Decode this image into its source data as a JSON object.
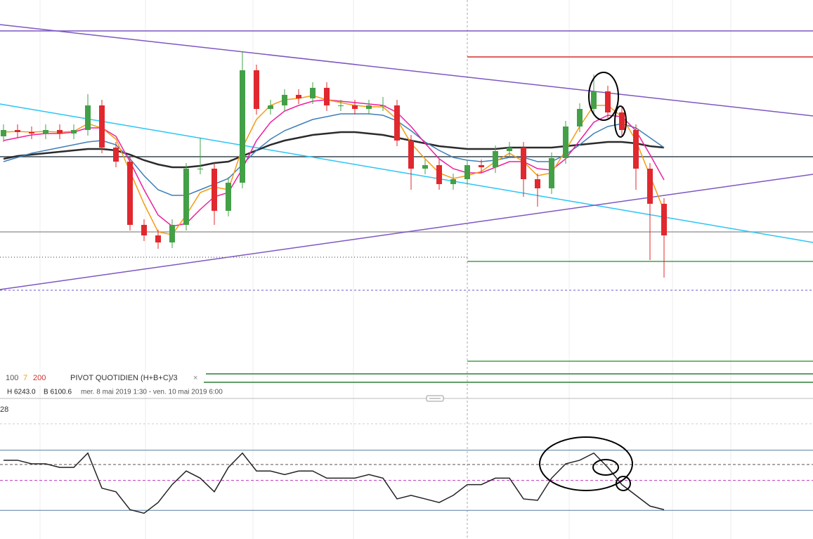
{
  "chart_data": {
    "type": "candlestick",
    "ylim": [
      5990,
      6265
    ],
    "candles": [
      [
        6168,
        6176.5,
        6164,
        6172.5
      ],
      [
        6172.5,
        6176.5,
        6167,
        6171
      ],
      [
        6171,
        6175,
        6166,
        6170
      ],
      [
        6170,
        6176.5,
        6166,
        6172.5
      ],
      [
        6172.5,
        6176.5,
        6166,
        6170
      ],
      [
        6170,
        6176.5,
        6166,
        6172.5
      ],
      [
        6172.5,
        6198,
        6168.5,
        6190
      ],
      [
        6190,
        6194,
        6156,
        6160
      ],
      [
        6160,
        6164,
        6146,
        6150
      ],
      [
        6150,
        6154,
        6101,
        6105
      ],
      [
        6105,
        6109,
        6093.5,
        6097.5
      ],
      [
        6097.5,
        6101.5,
        6088,
        6092.5
      ],
      [
        6092.5,
        6109,
        6088.5,
        6105
      ],
      [
        6105,
        6149,
        6101,
        6145
      ],
      [
        6145,
        6167,
        6141,
        6145
      ],
      [
        6145,
        6149,
        6105,
        6115
      ],
      [
        6115,
        6139,
        6111,
        6135
      ],
      [
        6135,
        6228,
        6131,
        6215
      ],
      [
        6215,
        6219,
        6183.5,
        6187.5
      ],
      [
        6187.5,
        6194,
        6183.5,
        6190
      ],
      [
        6190,
        6201.5,
        6186,
        6197.5
      ],
      [
        6197.5,
        6201.5,
        6191,
        6195
      ],
      [
        6195,
        6206.5,
        6191,
        6202.5
      ],
      [
        6202.5,
        6206.5,
        6186,
        6190
      ],
      [
        6190,
        6194,
        6186,
        6190
      ],
      [
        6190,
        6194,
        6183.5,
        6187.5
      ],
      [
        6187.5,
        6194,
        6183.5,
        6190
      ],
      [
        6190,
        6196,
        6186,
        6190
      ],
      [
        6190,
        6194,
        6161,
        6165
      ],
      [
        6165,
        6169,
        6130,
        6145
      ],
      [
        6145,
        6151.5,
        6141,
        6147.5
      ],
      [
        6147.5,
        6151.5,
        6130,
        6134
      ],
      [
        6134,
        6141.5,
        6130,
        6137.5
      ],
      [
        6137.5,
        6151.5,
        6133.5,
        6147.5
      ],
      [
        6147.5,
        6151.5,
        6142,
        6146
      ],
      [
        6146,
        6161.5,
        6142,
        6157.5
      ],
      [
        6157.5,
        6164,
        6153.5,
        6160
      ],
      [
        6160,
        6164,
        6125,
        6137.5
      ],
      [
        6137.5,
        6141.5,
        6118,
        6131
      ],
      [
        6131,
        6156.5,
        6127,
        6152.5
      ],
      [
        6152.5,
        6179,
        6148.5,
        6175
      ],
      [
        6175,
        6191.5,
        6171,
        6187.5
      ],
      [
        6187.5,
        6212,
        6183.5,
        6200
      ],
      [
        6200,
        6204,
        6181,
        6185
      ],
      [
        6185,
        6189,
        6168.5,
        6172.5
      ],
      [
        6172.5,
        6176.5,
        6130,
        6145
      ],
      [
        6145,
        6149,
        6080,
        6120
      ],
      [
        6120,
        6124,
        6067.5,
        6097.5
      ]
    ],
    "up_color": "#43a047",
    "down_color": "#e0282e",
    "series": [
      {
        "color": "#2b2b2b",
        "values": [
          6152,
          6154,
          6155,
          6156,
          6157,
          6158,
          6159,
          6159,
          6158,
          6155,
          6151,
          6148,
          6146,
          6146,
          6147,
          6149,
          6150,
          6154,
          6158,
          6162,
          6165,
          6167,
          6169,
          6170,
          6171,
          6171,
          6170,
          6169,
          6167,
          6165,
          6163,
          6161,
          6160,
          6159,
          6159,
          6159,
          6160,
          6160,
          6160,
          6160,
          6161,
          6162,
          6163,
          6164,
          6164,
          6163,
          6161,
          6160
        ]
      },
      {
        "color": "#3f7fb8",
        "values": [
          6150,
          6153,
          6156,
          6158,
          6160,
          6162,
          6164,
          6165,
          6162,
          6152,
          6140,
          6130,
          6126,
          6126,
          6130,
          6134,
          6138,
          6148,
          6158,
          6166,
          6172,
          6176,
          6180,
          6182,
          6184,
          6184,
          6184,
          6183,
          6179,
          6172,
          6164,
          6158,
          6153,
          6151,
          6150,
          6151,
          6153,
          6153,
          6150,
          6150,
          6155,
          6162,
          6170,
          6175,
          6177,
          6174,
          6167,
          6160
        ]
      },
      {
        "color": "#ee1f9e",
        "values": [
          6165,
          6167,
          6169,
          6170,
          6170,
          6171,
          6174,
          6174,
          6168,
          6150,
          6130,
          6112,
          6104,
          6106,
          6116,
          6125,
          6128,
          6145,
          6165,
          6178,
          6186,
          6190,
          6193,
          6194,
          6193,
          6192,
          6191,
          6190,
          6185,
          6175,
          6163,
          6152,
          6145,
          6142,
          6142,
          6146,
          6150,
          6150,
          6145,
          6144,
          6152,
          6165,
          6178,
          6183,
          6182,
          6172,
          6155,
          6137
        ]
      },
      {
        "color": "#f39c12",
        "values": [
          6171,
          6171.5,
          6171,
          6171.5,
          6171,
          6171.5,
          6177,
          6174,
          6166,
          6143,
          6120,
          6100,
          6098,
          6112,
          6128,
          6132,
          6130,
          6160,
          6180,
          6190,
          6194,
          6195,
          6197,
          6194,
          6192,
          6190,
          6189,
          6189,
          6180,
          6163,
          6152,
          6142,
          6138,
          6140,
          6143,
          6150,
          6156,
          6150,
          6140,
          6142,
          6158,
          6175,
          6190,
          6190,
          6182,
          6165,
          6140,
          6115
        ]
      }
    ],
    "hlines": [
      {
        "value": 6243,
        "color": "#7e57c2",
        "from": -0.25
      },
      {
        "value": 6224.5,
        "color": "#d32f2f",
        "from": 33
      },
      {
        "value": 6153.5,
        "color": "#37474f",
        "from": -0.25
      },
      {
        "value": 6100,
        "color": "#9e9e9e",
        "from": -0.25
      },
      {
        "value": 6079,
        "color": "#43a047",
        "from": 33
      },
      {
        "value": 6008,
        "color": "#43a047",
        "from": 33
      },
      {
        "value": 5999,
        "color": "#2e7d32",
        "from": 14.4
      },
      {
        "value": 5993,
        "color": "#2e7d32",
        "from": -0.25
      }
    ],
    "trendlines": [
      {
        "color": "#7e57c2",
        "x": [
          -0.25,
          57.6
        ],
        "y": [
          6247.5,
          6182.5
        ]
      },
      {
        "color": "#29c5f6",
        "x": [
          -0.25,
          57.6
        ],
        "y": [
          6191,
          6092.5
        ]
      },
      {
        "color": "#7e57c2",
        "x": [
          -0.25,
          57.6
        ],
        "y": [
          6059,
          6141
        ]
      }
    ],
    "legend": [
      {
        "text": "100",
        "color": "#555555"
      },
      {
        "text": "7",
        "color": "#f39c12"
      },
      {
        "text": "200",
        "color": "#d32f2f"
      }
    ],
    "pivot_label": "PIVOT  QUOTIDIEN  (H+B+C)/3",
    "high_label": "H 6243.0",
    "low_label": "B 6100.6",
    "period_label": "mer. 8 mai 2019 1:30 - ven. 10 mai 2019 6:00",
    "indicator_label": "28",
    "indicator": {
      "ylim": [
        10,
        90
      ],
      "levels": [
        72,
        62,
        51,
        30
      ],
      "color": "#222222",
      "values": [
        65,
        65,
        62.5,
        62.5,
        60,
        60,
        70,
        45.5,
        43,
        30.5,
        28,
        35.5,
        48,
        57.5,
        52.5,
        43,
        60,
        70,
        57.5,
        57.5,
        55,
        57.5,
        57.5,
        52.5,
        52.5,
        52.5,
        55,
        52.5,
        38,
        40.5,
        38,
        35.5,
        40.5,
        48,
        48,
        52.5,
        52.5,
        38,
        37,
        52.5,
        62.5,
        65,
        70,
        60,
        48,
        40.5,
        33,
        30.5
      ]
    }
  }
}
